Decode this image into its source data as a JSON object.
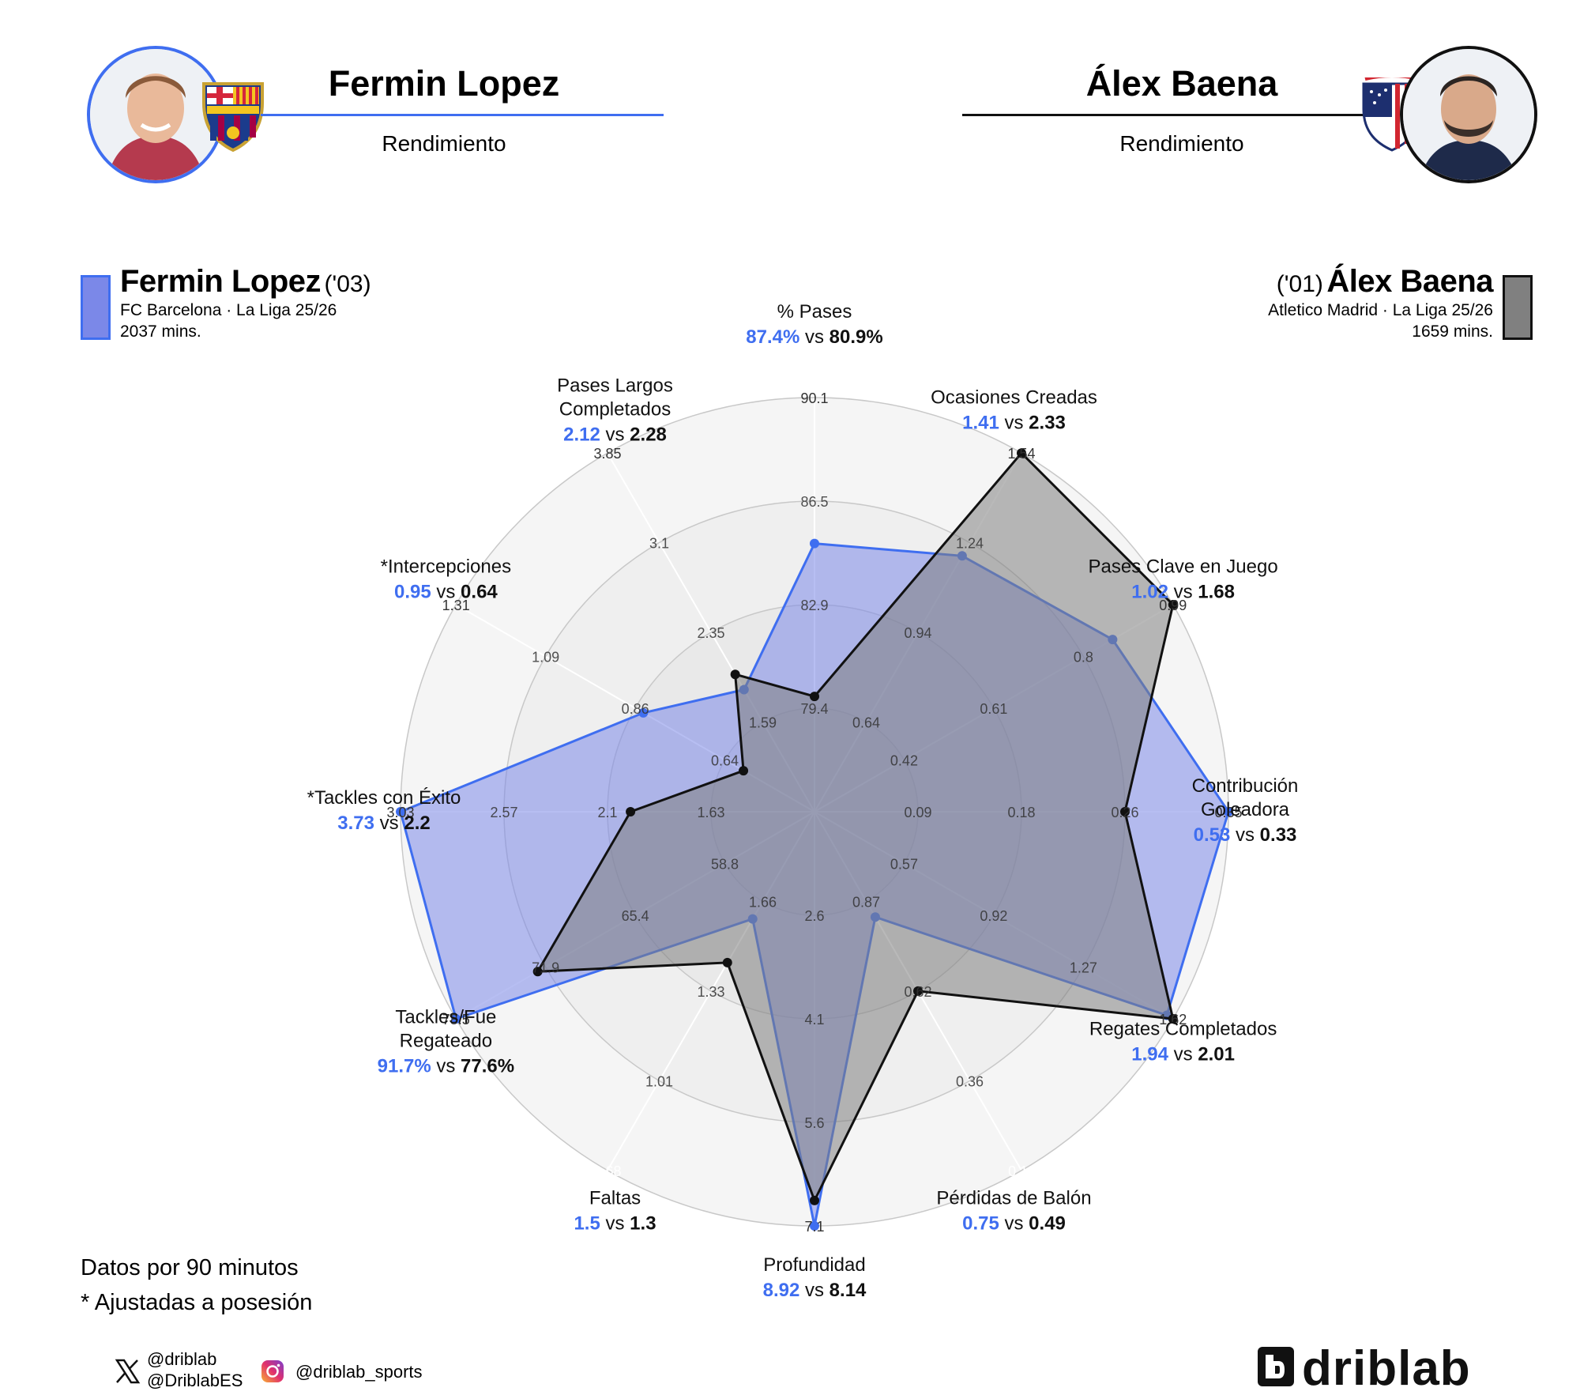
{
  "header": {
    "left": {
      "name": "Fermin Lopez",
      "subtitle": "Rendimiento",
      "club_badge": "fc-barcelona-crest"
    },
    "right": {
      "name": "Álex Baena",
      "subtitle": "Rendimiento",
      "club_badge": "atletico-madrid-crest"
    }
  },
  "player_a": {
    "name": "Fermin Lopez",
    "born": "('03)",
    "club_line": "FC Barcelona · La Liga 25/26",
    "minutes": "2037 mins.",
    "color": "#3f6ef0",
    "fill": "#7b88e8"
  },
  "player_b": {
    "name": "Álex Baena",
    "born": "('01)",
    "club_line": "Atletico Madrid · La Liga 25/26",
    "minutes": "1659 mins.",
    "color": "#111111",
    "fill": "#808080"
  },
  "chart_data": {
    "type": "radar",
    "grid": true,
    "series": [
      {
        "name": "Fermin Lopez",
        "color": "#3f6ef0"
      },
      {
        "name": "Álex Baena",
        "color": "#111111"
      }
    ],
    "axes": [
      {
        "label": [
          "% Pases"
        ],
        "a": "87.4%",
        "b": "80.9%",
        "a_val": 87.4,
        "b_val": 80.9,
        "ticks": [
          "79.4",
          "82.9",
          "86.5",
          "90.1"
        ],
        "min": 76.0,
        "max": 93.6,
        "tick_color": "#333333"
      },
      {
        "label": [
          "Ocasiones Creadas"
        ],
        "a": "1.41",
        "b": "2.33",
        "a_val": 1.41,
        "b_val": 2.33,
        "ticks": [
          "0.64",
          "0.94",
          "1.24",
          "1.54"
        ],
        "min": 0.34,
        "max": 1.84,
        "tick_color": "#333333"
      },
      {
        "label": [
          "Pases Clave en Juego"
        ],
        "a": "1.02",
        "b": "1.68",
        "a_val": 1.02,
        "b_val": 1.68,
        "ticks": [
          "0.42",
          "0.61",
          "0.8",
          "0.99"
        ],
        "min": 0.23,
        "max": 1.18,
        "tick_color": "#333333"
      },
      {
        "label": [
          "Contribución",
          "Goleadora"
        ],
        "a": "0.53",
        "b": "0.33",
        "a_val": 0.53,
        "b_val": 0.33,
        "ticks": [
          "0.09",
          "0.18",
          "0.26",
          "0.35"
        ],
        "min": 0.0,
        "max": 0.44,
        "tick_color": "#333333"
      },
      {
        "label": [
          "Regates Completados"
        ],
        "a": "1.94",
        "b": "2.01",
        "a_val": 1.94,
        "b_val": 2.01,
        "ticks": [
          "0.57",
          "0.92",
          "1.27",
          "1.62"
        ],
        "min": 0.22,
        "max": 1.97,
        "tick_color": "#333333"
      },
      {
        "label": [
          "Pérdidas de Balón"
        ],
        "a": "0.75",
        "b": "0.49",
        "a_val": 0.75,
        "b_val": 0.49,
        "ticks": [
          "0.87",
          "0.62",
          "0.36",
          "0.11"
        ],
        "min": 1.12,
        "max": -0.14,
        "tick_color": "#ffffff"
      },
      {
        "label": [
          "Profundidad"
        ],
        "a": "8.92",
        "b": "8.14",
        "a_val": 8.92,
        "b_val": 8.14,
        "ticks": [
          "2.6",
          "4.1",
          "5.6",
          "7.1"
        ],
        "min": 1.1,
        "max": 8.6,
        "tick_color": "#333333"
      },
      {
        "label": [
          "Faltas"
        ],
        "a": "1.5",
        "b": "1.3",
        "a_val": 1.5,
        "b_val": 1.3,
        "ticks": [
          "1.66",
          "1.33",
          "1.01",
          "0.68"
        ],
        "min": 1.99,
        "max": 0.35,
        "tick_color": "#ffffff"
      },
      {
        "label": [
          "Tackles/Fue",
          "Regateado"
        ],
        "a": "91.7%",
        "b": "77.6%",
        "a_val": 91.7,
        "b_val": 77.6,
        "ticks": [
          "58.8",
          "65.4",
          "71.9",
          "78.5"
        ],
        "min": 52.2,
        "max": 85.1,
        "tick_color": "#333333"
      },
      {
        "label": [
          "*Tackles con Éxito"
        ],
        "a": "3.73",
        "b": "2.2",
        "a_val": 3.73,
        "b_val": 2.2,
        "ticks": [
          "1.63",
          "2.1",
          "2.57",
          "3.03"
        ],
        "min": 1.16,
        "max": 3.5,
        "tick_color": "#333333"
      },
      {
        "label": [
          "*Intercepciones"
        ],
        "a": "0.95",
        "b": "0.64",
        "a_val": 0.95,
        "b_val": 0.64,
        "ticks": [
          "0.64",
          "0.86",
          "1.09",
          "1.31"
        ],
        "min": 0.42,
        "max": 1.53,
        "tick_color": "#333333"
      },
      {
        "label": [
          "Pases Largos",
          "Completados"
        ],
        "a": "2.12",
        "b": "2.28",
        "a_val": 2.12,
        "b_val": 2.28,
        "ticks": [
          "1.59",
          "2.35",
          "3.1",
          "3.85"
        ],
        "min": 0.84,
        "max": 4.6,
        "tick_color": "#333333"
      }
    ],
    "vs_word": "vs"
  },
  "footnotes": {
    "line1": "Datos por 90 minutos",
    "line2": "* Ajustadas a posesión"
  },
  "social": {
    "x_handle_1": "@driblab",
    "x_handle_2": "@DriblabES",
    "instagram": "@driblab_sports",
    "x_icon": "x-logo",
    "ig_icon": "instagram-logo"
  },
  "brand": {
    "name": "driblab",
    "icon": "driblab-logo"
  }
}
